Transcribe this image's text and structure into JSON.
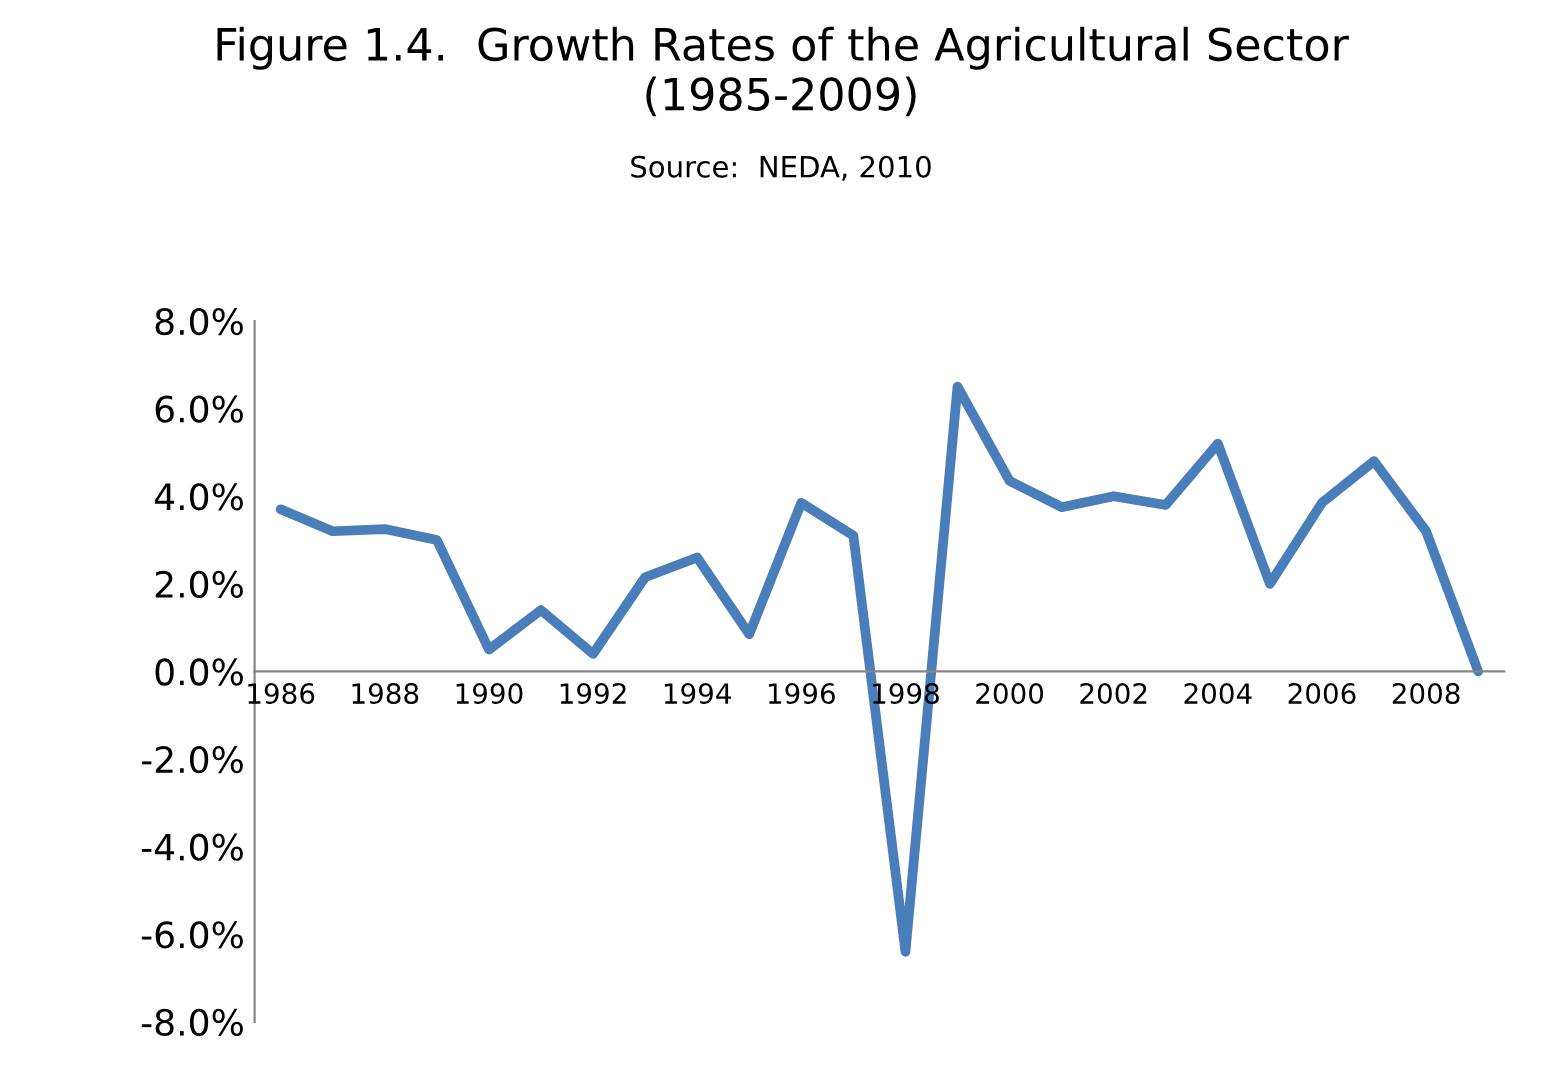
{
  "chart_data": {
    "type": "line",
    "title": "Figure 1.4.  Growth Rates of the Agricultural Sector\n(1985-2009)",
    "subtitle": "Source:  NEDA, 2010",
    "categories": [
      "1986",
      null,
      "1988",
      null,
      "1990",
      null,
      "1992",
      null,
      "1994",
      null,
      "1996",
      null,
      "1998",
      null,
      "2000",
      null,
      "2002",
      null,
      "2004",
      null,
      "2006",
      null,
      "2008",
      null
    ],
    "series": [
      {
        "color": "#4a7ebb",
        "values": [
          3.7,
          3.2,
          3.25,
          3.0,
          0.5,
          1.4,
          0.4,
          2.15,
          2.6,
          0.85,
          3.85,
          3.1,
          -6.4,
          6.5,
          4.35,
          3.75,
          4.0,
          3.8,
          5.2,
          2.0,
          3.85,
          4.8,
          3.2,
          0.0
        ]
      }
    ],
    "ylim": [
      -8,
      8
    ],
    "yticks": [
      {
        "value": -8,
        "label": "-8.0%"
      },
      {
        "value": -6,
        "label": "-6.0%"
      },
      {
        "value": -4,
        "label": "-4.0%"
      },
      {
        "value": -2,
        "label": "-2.0%"
      },
      {
        "value": 0,
        "label": "0.0%"
      },
      {
        "value": 2,
        "label": "2.0%"
      },
      {
        "value": 4,
        "label": "4.0%"
      },
      {
        "value": 6,
        "label": "6.0%"
      },
      {
        "value": 8,
        "label": "8.0%"
      }
    ],
    "grid": false,
    "marker": "none",
    "line_style": "solid"
  }
}
